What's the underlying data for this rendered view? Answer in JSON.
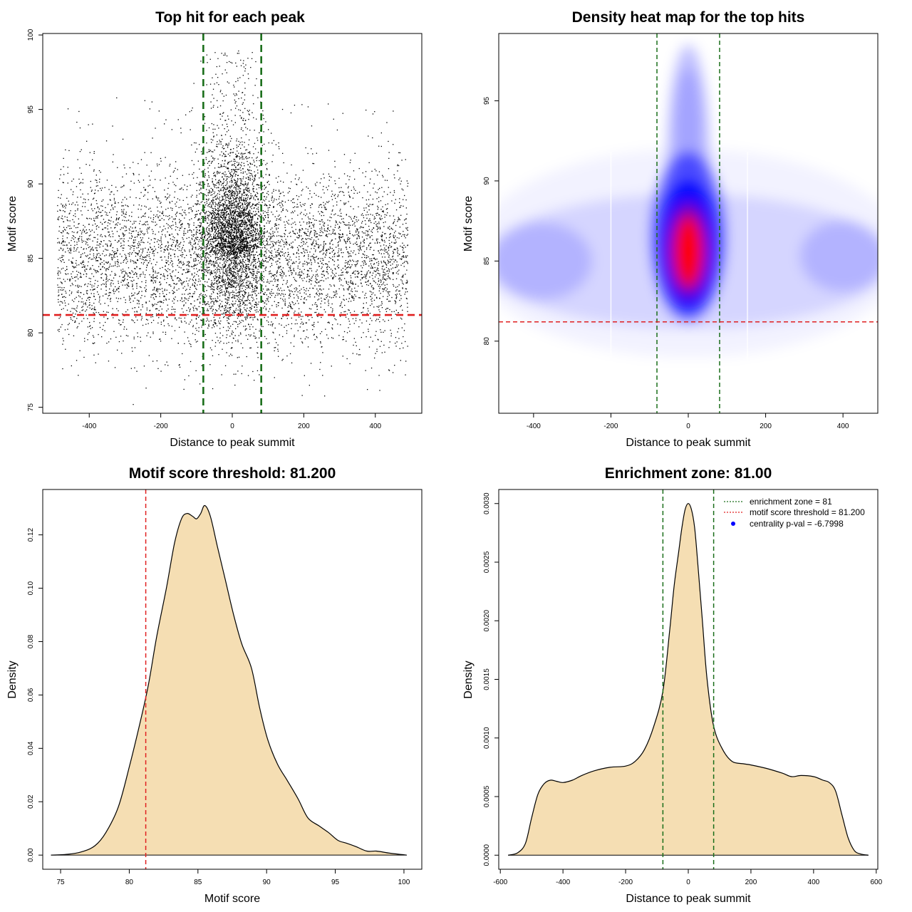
{
  "colors": {
    "threshold_red": "#e02020",
    "zone_green": "#1a6e1a",
    "density_fill": "#f5deb3",
    "heat_low": "#ffffff",
    "heat_mid": "#0000ff",
    "heat_high": "#ff0000",
    "point_marker": "#0000ff"
  },
  "chart_data": [
    {
      "id": "scatter",
      "type": "scatter",
      "title": "Top hit for each peak",
      "xlabel": "Distance to peak summit",
      "ylabel": "Motif score",
      "xlim": [
        -530,
        530
      ],
      "ylim": [
        74.6,
        100.1
      ],
      "xticks": [
        -400,
        -200,
        0,
        200,
        400
      ],
      "yticks": [
        75,
        80,
        85,
        90,
        95,
        100
      ],
      "threshold_y": 81.2,
      "zone_x": [
        -81,
        81
      ],
      "point_count": 9000
    },
    {
      "id": "heatmap",
      "type": "heatmap",
      "title": "Density heat map for the top hits",
      "xlabel": "Distance to peak summit",
      "ylabel": "Motif score",
      "xlim": [
        -490,
        490
      ],
      "ylim": [
        75.5,
        99.2
      ],
      "xticks": [
        -400,
        -200,
        0,
        200,
        400
      ],
      "yticks": [
        80,
        85,
        90,
        95
      ],
      "threshold_y": 81.2,
      "zone_x": [
        -81,
        81
      ],
      "peak": {
        "x": 0,
        "y": 85.6
      }
    },
    {
      "id": "score_density",
      "type": "area",
      "title": "Motif score threshold: 81.200",
      "xlabel": "Motif score",
      "ylabel": "Density",
      "xlim": [
        73.7,
        101.3
      ],
      "ylim": [
        -0.0053,
        0.137
      ],
      "xticks": [
        75,
        80,
        85,
        90,
        95,
        100
      ],
      "yticks": [
        0.0,
        0.02,
        0.04,
        0.06,
        0.08,
        0.1,
        0.12
      ],
      "ytick_labels": [
        "0.00",
        "0.02",
        "0.04",
        "0.06",
        "0.08",
        "0.10",
        "0.12"
      ],
      "threshold_x": 81.2,
      "x": [
        74.3,
        75.5,
        76.5,
        77.5,
        78.3,
        79.2,
        80.0,
        80.8,
        81.4,
        82.0,
        82.7,
        83.3,
        83.8,
        84.2,
        84.6,
        84.9,
        85.2,
        85.5,
        85.9,
        86.4,
        87.0,
        87.6,
        88.2,
        88.9,
        89.5,
        90.1,
        90.8,
        91.5,
        92.3,
        93.0,
        93.8,
        94.5,
        95.2,
        95.8,
        96.5,
        97.3,
        98.0,
        99.0,
        100.2
      ],
      "y": [
        0.0,
        0.0003,
        0.0012,
        0.0035,
        0.0085,
        0.018,
        0.033,
        0.05,
        0.064,
        0.082,
        0.1,
        0.117,
        0.126,
        0.128,
        0.127,
        0.126,
        0.128,
        0.131,
        0.127,
        0.116,
        0.103,
        0.09,
        0.079,
        0.07,
        0.055,
        0.043,
        0.034,
        0.028,
        0.021,
        0.014,
        0.011,
        0.0085,
        0.0055,
        0.0045,
        0.0032,
        0.0015,
        0.0015,
        0.0007,
        0.0
      ]
    },
    {
      "id": "distance_density",
      "type": "area",
      "title": "Enrichment zone: 81.00",
      "xlabel": "Distance to peak summit",
      "ylabel": "Density",
      "xlim": [
        -605,
        605
      ],
      "ylim": [
        -0.00012,
        0.00312
      ],
      "xticks": [
        -600,
        -400,
        -200,
        0,
        200,
        400,
        600
      ],
      "yticks": [
        0.0,
        0.0005,
        0.001,
        0.0015,
        0.002,
        0.0025,
        0.003
      ],
      "ytick_labels": [
        "0.0000",
        "0.0005",
        "0.0010",
        "0.0015",
        "0.0020",
        "0.0025",
        "0.0030"
      ],
      "zone_x": [
        -81,
        81
      ],
      "x": [
        -575,
        -545,
        -520,
        -500,
        -480,
        -460,
        -440,
        -420,
        -400,
        -370,
        -340,
        -300,
        -250,
        -200,
        -170,
        -140,
        -110,
        -81,
        -60,
        -45,
        -30,
        -20,
        -10,
        0,
        10,
        20,
        30,
        45,
        60,
        81,
        110,
        140,
        175,
        200,
        250,
        300,
        330,
        360,
        400,
        430,
        450,
        470,
        490,
        510,
        530,
        550,
        575
      ],
      "y": [
        0.0,
        2e-05,
        0.0001,
        0.00032,
        0.00052,
        0.00061,
        0.00064,
        0.00063,
        0.00062,
        0.00064,
        0.00068,
        0.00072,
        0.00075,
        0.00076,
        0.0008,
        0.0009,
        0.0011,
        0.0014,
        0.0019,
        0.0023,
        0.0026,
        0.0028,
        0.00295,
        0.003,
        0.00295,
        0.0028,
        0.0025,
        0.002,
        0.0015,
        0.0011,
        0.0009,
        0.0008,
        0.00078,
        0.00077,
        0.00074,
        0.0007,
        0.00067,
        0.00068,
        0.00067,
        0.00064,
        0.00062,
        0.00055,
        0.00035,
        0.00015,
        4e-05,
        1e-05,
        0.0
      ],
      "legend": [
        {
          "label": "enrichment zone = 81",
          "kind": "dotted-green"
        },
        {
          "label": "motif score threshold = 81.200",
          "kind": "dotted-red"
        },
        {
          "label": "centrality p-val = -6.7998",
          "kind": "point-blue"
        }
      ],
      "legend_position": "top-right"
    }
  ]
}
